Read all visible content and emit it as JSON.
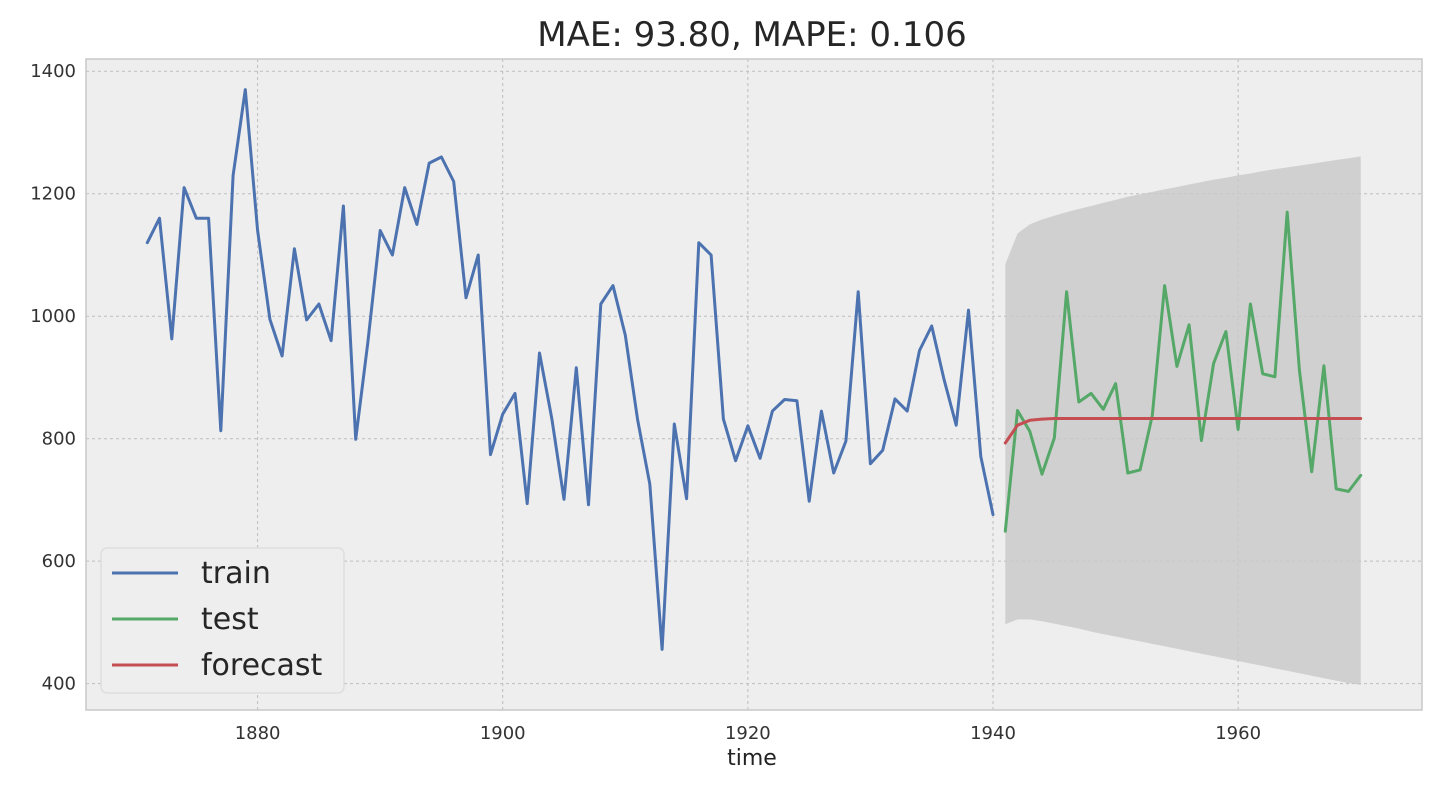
{
  "chart_data": {
    "type": "line",
    "title": "MAE: 93.80, MAPE: 0.106",
    "xlabel": "time",
    "ylabel": "",
    "xlim": [
      1866,
      1975
    ],
    "ylim": [
      357,
      1420
    ],
    "xticks": [
      1880,
      1900,
      1920,
      1940,
      1960
    ],
    "yticks": [
      400,
      600,
      800,
      1000,
      1200,
      1400
    ],
    "grid": true,
    "legend_position": "lower-left",
    "legend": [
      "train",
      "test",
      "forecast"
    ],
    "series": [
      {
        "name": "train",
        "color": "#4c72b0",
        "x": [
          1871,
          1872,
          1873,
          1874,
          1875,
          1876,
          1877,
          1878,
          1879,
          1880,
          1881,
          1882,
          1883,
          1884,
          1885,
          1886,
          1887,
          1888,
          1889,
          1890,
          1891,
          1892,
          1893,
          1894,
          1895,
          1896,
          1897,
          1898,
          1899,
          1900,
          1901,
          1902,
          1903,
          1904,
          1905,
          1906,
          1907,
          1908,
          1909,
          1910,
          1911,
          1912,
          1913,
          1914,
          1915,
          1916,
          1917,
          1918,
          1919,
          1920,
          1921,
          1922,
          1923,
          1924,
          1925,
          1926,
          1927,
          1928,
          1929,
          1930,
          1931,
          1932,
          1933,
          1934,
          1935,
          1936,
          1937,
          1938,
          1939,
          1940
        ],
        "y": [
          1120,
          1160,
          963,
          1210,
          1160,
          1160,
          813,
          1230,
          1370,
          1140,
          995,
          935,
          1110,
          994,
          1020,
          960,
          1180,
          799,
          958,
          1140,
          1100,
          1210,
          1150,
          1250,
          1260,
          1220,
          1030,
          1100,
          774,
          840,
          874,
          694,
          940,
          833,
          701,
          916,
          692,
          1020,
          1050,
          969,
          831,
          726,
          456,
          824,
          702,
          1120,
          1100,
          832,
          764,
          821,
          768,
          845,
          864,
          862,
          698,
          845,
          744,
          796,
          1040,
          759,
          781,
          865,
          845,
          944,
          984,
          897,
          822,
          1010,
          771,
          676
        ]
      },
      {
        "name": "test",
        "color": "#55a868",
        "x": [
          1941,
          1942,
          1943,
          1944,
          1945,
          1946,
          1947,
          1948,
          1949,
          1950,
          1951,
          1952,
          1953,
          1954,
          1955,
          1956,
          1957,
          1958,
          1959,
          1960,
          1961,
          1962,
          1963,
          1964,
          1965,
          1966,
          1967,
          1968,
          1969,
          1970
        ],
        "y": [
          649,
          846,
          812,
          742,
          801,
          1040,
          860,
          874,
          848,
          890,
          744,
          749,
          838,
          1050,
          918,
          986,
          797,
          923,
          975,
          815,
          1020,
          906,
          901,
          1170,
          912,
          746,
          919,
          718,
          714,
          740
        ]
      },
      {
        "name": "forecast",
        "color": "#c44e52",
        "x": [
          1941,
          1942,
          1943,
          1944,
          1945,
          1946,
          1947,
          1948,
          1949,
          1950,
          1951,
          1952,
          1953,
          1954,
          1955,
          1956,
          1957,
          1958,
          1959,
          1960,
          1961,
          1962,
          1963,
          1964,
          1965,
          1966,
          1967,
          1968,
          1969,
          1970
        ],
        "y": [
          793,
          822,
          830,
          832,
          833,
          833,
          833,
          833,
          833,
          833,
          833,
          833,
          833,
          833,
          833,
          833,
          833,
          833,
          833,
          833,
          833,
          833,
          833,
          833,
          833,
          833,
          833,
          833,
          833,
          833
        ]
      }
    ],
    "confidence_band": {
      "color": "#c8c8c8",
      "x": [
        1941,
        1942,
        1943,
        1944,
        1945,
        1946,
        1947,
        1948,
        1949,
        1950,
        1951,
        1952,
        1953,
        1954,
        1955,
        1956,
        1957,
        1958,
        1959,
        1960,
        1961,
        1962,
        1963,
        1964,
        1965,
        1966,
        1967,
        1968,
        1969,
        1970
      ],
      "lower": [
        497,
        505,
        505,
        502,
        498,
        494,
        490,
        485,
        481,
        477,
        473,
        469,
        465,
        461,
        457,
        453,
        449,
        445,
        441,
        437,
        433,
        429,
        425,
        421,
        417,
        413,
        409,
        405,
        401,
        398
      ],
      "upper": [
        1085,
        1135,
        1150,
        1158,
        1164,
        1170,
        1175,
        1180,
        1185,
        1190,
        1195,
        1199,
        1203,
        1207,
        1211,
        1215,
        1219,
        1223,
        1226,
        1230,
        1233,
        1237,
        1240,
        1243,
        1246,
        1249,
        1252,
        1255,
        1258,
        1261
      ]
    }
  }
}
